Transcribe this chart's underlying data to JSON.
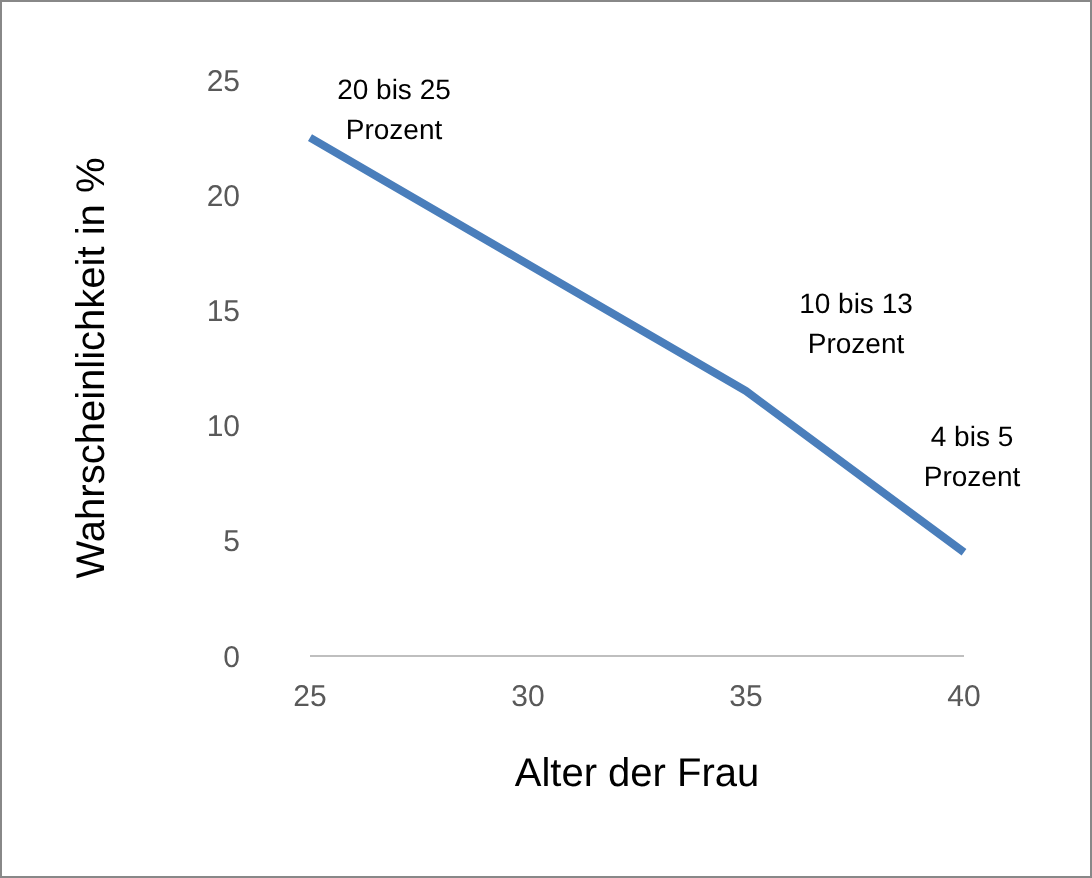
{
  "chart_data": {
    "type": "line",
    "xlabel": "Alter der Frau",
    "ylabel": "Wahrscheinlichkeit in %",
    "x": [
      25,
      35,
      40
    ],
    "series": [
      {
        "color": "#4a7ebb",
        "values": [
          22.5,
          11.5,
          4.5
        ]
      }
    ],
    "xlim": [
      25,
      40
    ],
    "xticks": [
      25,
      30,
      35,
      40
    ],
    "ylim": [
      0,
      25
    ],
    "yticks": [
      0,
      5,
      10,
      15,
      20,
      25
    ],
    "grid": false,
    "marker": "none",
    "line_style": "solid",
    "annotations": [
      "20 bis 25\nProzent",
      "10 bis 13\nProzent",
      "4 bis 5\nProzent"
    ]
  }
}
